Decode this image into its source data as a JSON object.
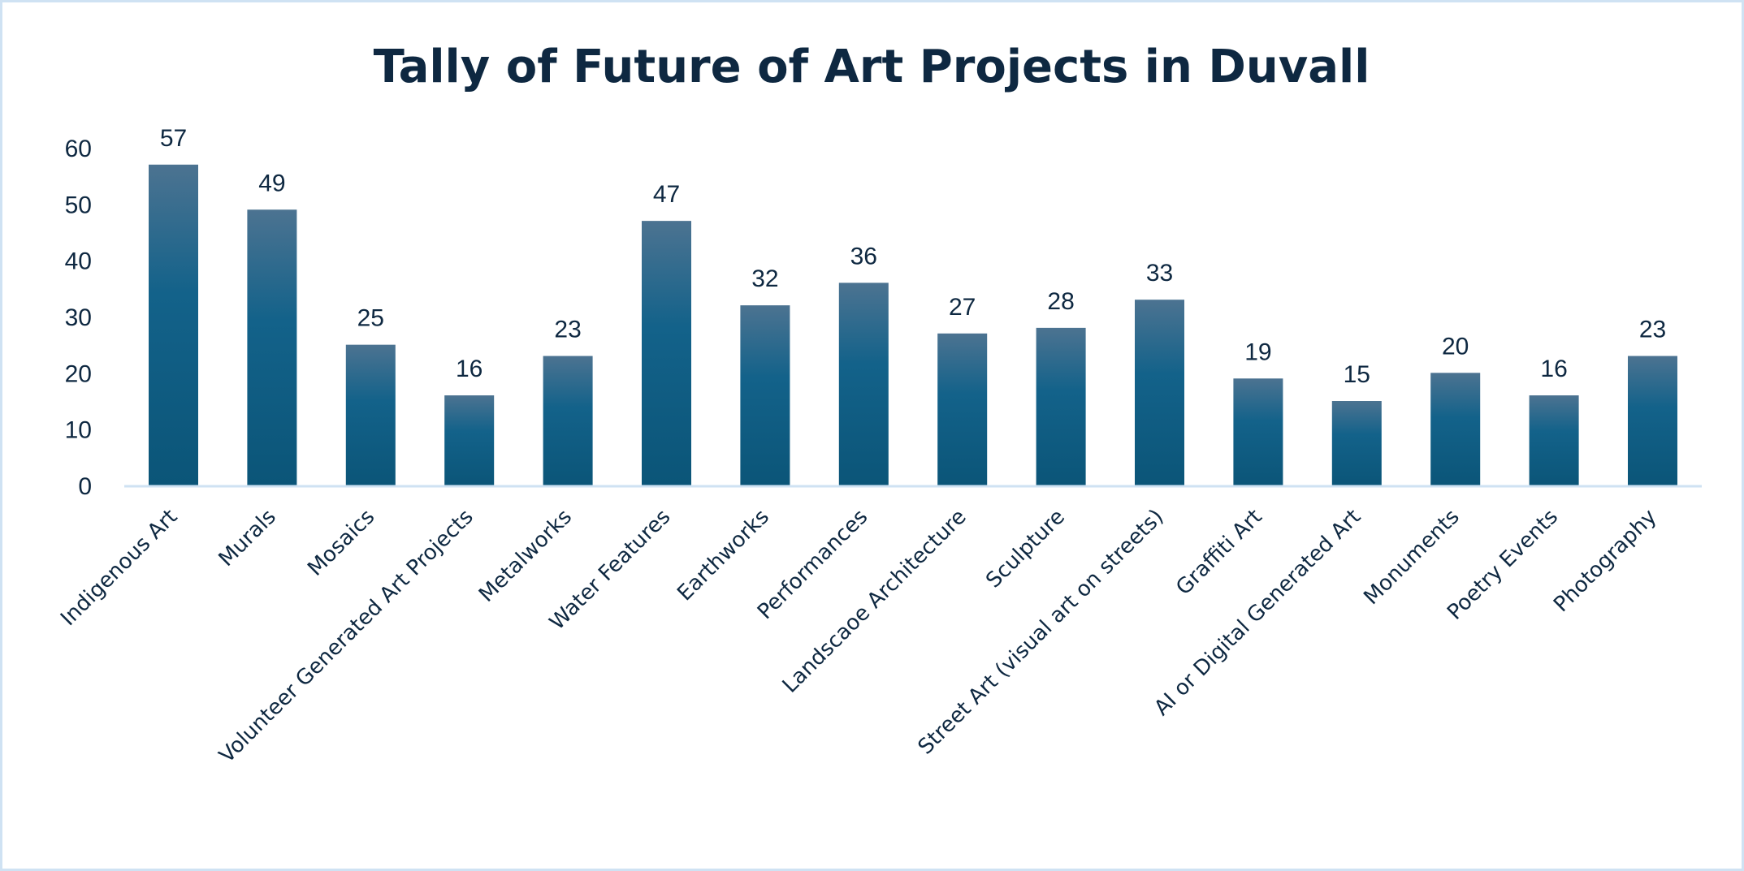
{
  "chart_data": {
    "type": "bar",
    "title": "Tally of Future of Art Projects in Duvall",
    "xlabel": "",
    "ylabel": "",
    "ylim": [
      0,
      60
    ],
    "yticks": [
      0,
      10,
      20,
      30,
      40,
      50,
      60
    ],
    "grid": false,
    "legend": "none",
    "data_labels": true,
    "categories": [
      "Indigenous Art",
      "Murals",
      "Mosaics",
      "Volunteer Generated Art Projects",
      "Metalworks",
      "Water Features",
      "Earthworks",
      "Performances",
      "Landscaoe Architecture",
      "Sculpture",
      "Street Art (visual art on streets)",
      "Graffiti Art",
      "AI or Digital Generated Art",
      "Monuments",
      "Poetry Events",
      "Photography"
    ],
    "values": [
      57,
      49,
      25,
      16,
      23,
      47,
      32,
      36,
      27,
      28,
      33,
      19,
      15,
      20,
      16,
      23
    ],
    "colors": {
      "bar_top": "#4c7391",
      "bar_bottom": "#0b5578",
      "text": "#0e2841",
      "axis": "#cfe2f3",
      "border": "#cfe2f3"
    }
  }
}
